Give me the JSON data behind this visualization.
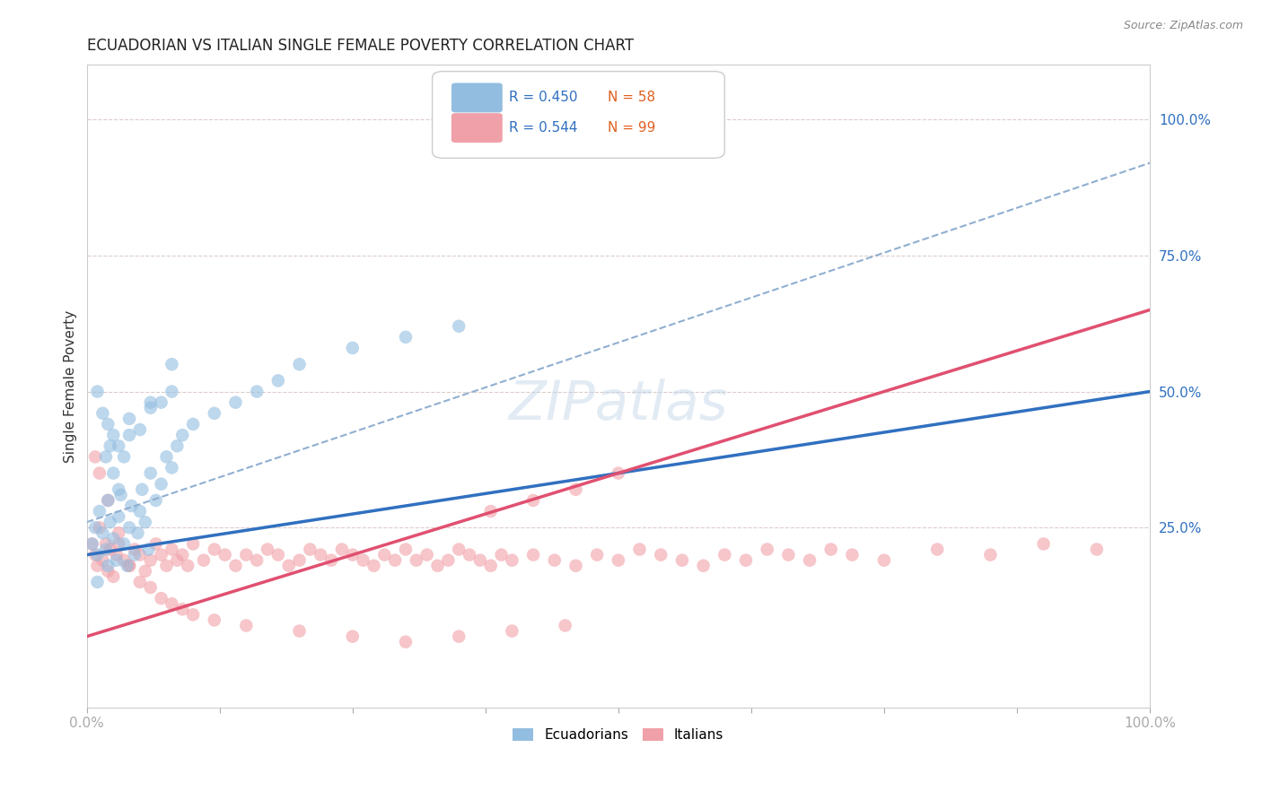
{
  "title": "ECUADORIAN VS ITALIAN SINGLE FEMALE POVERTY CORRELATION CHART",
  "source": "Source: ZipAtlas.com",
  "ylabel": "Single Female Poverty",
  "xlim": [
    0.0,
    1.0
  ],
  "ylim": [
    -0.08,
    1.1
  ],
  "xticks": [
    0.0,
    0.125,
    0.25,
    0.375,
    0.5,
    0.625,
    0.75,
    0.875,
    1.0
  ],
  "xtick_labels": [
    "0.0%",
    "",
    "",
    "",
    "",
    "",
    "",
    "",
    "100.0%"
  ],
  "ytick_positions": [
    0.0,
    0.25,
    0.5,
    0.75,
    1.0
  ],
  "ytick_labels": [
    "",
    "25.0%",
    "50.0%",
    "75.0%",
    "100.0%"
  ],
  "watermark": "ZIPatlas",
  "legend_r1": "R = 0.450",
  "legend_n1": "N = 58",
  "legend_r2": "R = 0.544",
  "legend_n2": "N = 99",
  "blue_color": "#92bde0",
  "pink_color": "#f0a0a8",
  "blue_line_color": "#3070c0",
  "pink_line_color": "#e05070",
  "dashed_line_color": "#90afd0",
  "background_color": "#ffffff",
  "blue_line_x0": 0.0,
  "blue_line_y0": 0.2,
  "blue_line_x1": 1.0,
  "blue_line_y1": 0.5,
  "pink_line_x0": 0.0,
  "pink_line_y0": 0.05,
  "pink_line_x1": 1.0,
  "pink_line_y1": 0.65,
  "dash_line_x0": 0.0,
  "dash_line_y0": 0.26,
  "dash_line_x1": 1.0,
  "dash_line_y1": 0.92,
  "ecu_x": [
    0.005,
    0.008,
    0.01,
    0.012,
    0.015,
    0.018,
    0.02,
    0.022,
    0.025,
    0.028,
    0.03,
    0.032,
    0.035,
    0.038,
    0.04,
    0.042,
    0.045,
    0.048,
    0.05,
    0.052,
    0.055,
    0.058,
    0.06,
    0.065,
    0.07,
    0.075,
    0.08,
    0.085,
    0.09,
    0.01,
    0.015,
    0.02,
    0.025,
    0.03,
    0.035,
    0.04,
    0.05,
    0.06,
    0.07,
    0.08,
    0.1,
    0.12,
    0.14,
    0.16,
    0.18,
    0.2,
    0.25,
    0.3,
    0.35,
    0.01,
    0.02,
    0.025,
    0.03,
    0.018,
    0.022,
    0.04,
    0.06,
    0.08
  ],
  "ecu_y": [
    0.22,
    0.25,
    0.2,
    0.28,
    0.24,
    0.21,
    0.3,
    0.26,
    0.23,
    0.19,
    0.27,
    0.31,
    0.22,
    0.18,
    0.25,
    0.29,
    0.2,
    0.24,
    0.28,
    0.32,
    0.26,
    0.21,
    0.35,
    0.3,
    0.33,
    0.38,
    0.36,
    0.4,
    0.42,
    0.5,
    0.46,
    0.44,
    0.42,
    0.4,
    0.38,
    0.45,
    0.43,
    0.47,
    0.48,
    0.5,
    0.44,
    0.46,
    0.48,
    0.5,
    0.52,
    0.55,
    0.58,
    0.6,
    0.62,
    0.15,
    0.18,
    0.35,
    0.32,
    0.38,
    0.4,
    0.42,
    0.48,
    0.55
  ],
  "ita_x": [
    0.005,
    0.008,
    0.01,
    0.012,
    0.015,
    0.018,
    0.02,
    0.022,
    0.025,
    0.028,
    0.03,
    0.035,
    0.04,
    0.045,
    0.05,
    0.055,
    0.06,
    0.065,
    0.07,
    0.075,
    0.08,
    0.085,
    0.09,
    0.095,
    0.1,
    0.11,
    0.12,
    0.13,
    0.14,
    0.15,
    0.16,
    0.17,
    0.18,
    0.19,
    0.2,
    0.21,
    0.22,
    0.23,
    0.24,
    0.25,
    0.26,
    0.27,
    0.28,
    0.29,
    0.3,
    0.31,
    0.32,
    0.33,
    0.34,
    0.35,
    0.36,
    0.37,
    0.38,
    0.39,
    0.4,
    0.42,
    0.44,
    0.46,
    0.48,
    0.5,
    0.52,
    0.54,
    0.56,
    0.58,
    0.6,
    0.62,
    0.64,
    0.66,
    0.68,
    0.7,
    0.72,
    0.75,
    0.8,
    0.85,
    0.9,
    0.95,
    0.38,
    0.42,
    0.46,
    0.5,
    0.008,
    0.012,
    0.02,
    0.03,
    0.04,
    0.05,
    0.06,
    0.07,
    0.08,
    0.09,
    0.1,
    0.12,
    0.15,
    0.2,
    0.25,
    0.3,
    0.35,
    0.4,
    0.45
  ],
  "ita_y": [
    0.22,
    0.2,
    0.18,
    0.25,
    0.19,
    0.22,
    0.17,
    0.21,
    0.16,
    0.2,
    0.24,
    0.19,
    0.18,
    0.21,
    0.2,
    0.17,
    0.19,
    0.22,
    0.2,
    0.18,
    0.21,
    0.19,
    0.2,
    0.18,
    0.22,
    0.19,
    0.21,
    0.2,
    0.18,
    0.2,
    0.19,
    0.21,
    0.2,
    0.18,
    0.19,
    0.21,
    0.2,
    0.19,
    0.21,
    0.2,
    0.19,
    0.18,
    0.2,
    0.19,
    0.21,
    0.19,
    0.2,
    0.18,
    0.19,
    0.21,
    0.2,
    0.19,
    0.18,
    0.2,
    0.19,
    0.2,
    0.19,
    0.18,
    0.2,
    0.19,
    0.21,
    0.2,
    0.19,
    0.18,
    0.2,
    0.19,
    0.21,
    0.2,
    0.19,
    0.21,
    0.2,
    0.19,
    0.21,
    0.2,
    0.22,
    0.21,
    0.28,
    0.3,
    0.32,
    0.35,
    0.38,
    0.35,
    0.3,
    0.22,
    0.18,
    0.15,
    0.14,
    0.12,
    0.11,
    0.1,
    0.09,
    0.08,
    0.07,
    0.06,
    0.05,
    0.04,
    0.05,
    0.06,
    0.07
  ]
}
